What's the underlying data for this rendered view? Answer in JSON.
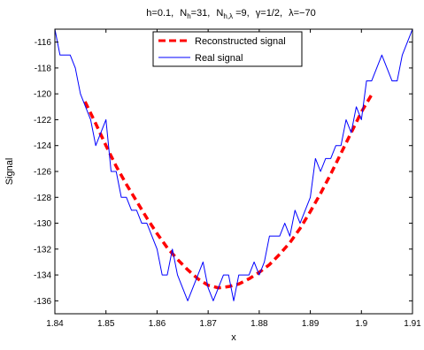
{
  "chart_data": {
    "type": "line",
    "title_parts": {
      "h": "h=0.1,",
      "nh_prefix": "N",
      "nh_sub": "h",
      "nh_suffix": "=31,",
      "nhl_prefix": "N",
      "nhl_sub": "h,λ",
      "nhl_suffix": " =9,",
      "gamma": "γ=1/2,",
      "lambda": "λ=−70"
    },
    "xlabel": "x",
    "ylabel": "Signal",
    "xlim": [
      1.84,
      1.91
    ],
    "ylim": [
      -137,
      -115
    ],
    "xticks": [
      1.84,
      1.85,
      1.86,
      1.87,
      1.88,
      1.89,
      1.9,
      1.91
    ],
    "xtick_labels": [
      "1.84",
      "1.85",
      "1.86",
      "1.87",
      "1.88",
      "1.89",
      "1.9",
      "1.91"
    ],
    "yticks": [
      -136,
      -134,
      -132,
      -130,
      -128,
      -126,
      -124,
      -122,
      -120,
      -118,
      -116
    ],
    "ytick_labels": [
      "-136",
      "-134",
      "-132",
      "-130",
      "-128",
      "-126",
      "-124",
      "-122",
      "-120",
      "-118",
      "-116"
    ],
    "grid": false,
    "legend_position": "top-center",
    "series": [
      {
        "name": "Reconstructed signal",
        "color": "#ff0000",
        "style": "dashed",
        "x": [
          1.8459,
          1.848,
          1.85,
          1.852,
          1.854,
          1.856,
          1.858,
          1.86,
          1.862,
          1.864,
          1.866,
          1.868,
          1.87,
          1.872,
          1.874,
          1.876,
          1.878,
          1.88,
          1.882,
          1.884,
          1.886,
          1.888,
          1.89,
          1.892,
          1.894,
          1.896,
          1.898,
          1.9,
          1.9021
        ],
        "y": [
          -120.6,
          -122.3,
          -124.0,
          -125.6,
          -127.0,
          -128.3,
          -129.6,
          -130.8,
          -131.9,
          -132.8,
          -133.6,
          -134.3,
          -134.8,
          -135.0,
          -134.9,
          -134.7,
          -134.3,
          -133.8,
          -133.2,
          -132.4,
          -131.5,
          -130.4,
          -129.1,
          -127.7,
          -126.2,
          -124.6,
          -123.0,
          -121.4,
          -120.0
        ]
      },
      {
        "name": "Real signal",
        "color": "#0000ff",
        "style": "solid",
        "x": [
          1.84,
          1.841,
          1.842,
          1.843,
          1.844,
          1.845,
          1.846,
          1.847,
          1.848,
          1.849,
          1.85,
          1.851,
          1.852,
          1.853,
          1.854,
          1.855,
          1.856,
          1.857,
          1.858,
          1.859,
          1.86,
          1.861,
          1.862,
          1.863,
          1.864,
          1.865,
          1.866,
          1.867,
          1.868,
          1.869,
          1.87,
          1.871,
          1.872,
          1.873,
          1.874,
          1.875,
          1.876,
          1.877,
          1.878,
          1.879,
          1.88,
          1.881,
          1.882,
          1.883,
          1.884,
          1.885,
          1.886,
          1.887,
          1.888,
          1.889,
          1.89,
          1.891,
          1.892,
          1.893,
          1.894,
          1.895,
          1.896,
          1.897,
          1.898,
          1.899,
          1.9,
          1.901,
          1.902,
          1.903,
          1.904,
          1.905,
          1.906,
          1.907,
          1.908,
          1.909,
          1.91
        ],
        "y": [
          -115.0,
          -117.0,
          -117.0,
          -117.0,
          -118.0,
          -120.0,
          -121.0,
          -122.0,
          -124.0,
          -123.0,
          -122.0,
          -126.0,
          -126.0,
          -128.0,
          -128.0,
          -129.0,
          -129.0,
          -130.0,
          -130.0,
          -131.0,
          -132.0,
          -134.0,
          -134.0,
          -132.0,
          -134.0,
          -135.0,
          -136.0,
          -135.0,
          -134.0,
          -133.0,
          -135.0,
          -136.0,
          -135.0,
          -134.0,
          -134.0,
          -136.0,
          -134.0,
          -134.0,
          -134.0,
          -133.0,
          -134.0,
          -133.0,
          -131.0,
          -131.0,
          -131.0,
          -130.0,
          -131.0,
          -129.0,
          -130.0,
          -129.0,
          -128.0,
          -125.0,
          -126.0,
          -125.0,
          -125.0,
          -124.0,
          -124.0,
          -122.0,
          -123.0,
          -121.0,
          -122.0,
          -119.0,
          -119.0,
          -118.0,
          -117.0,
          -118.0,
          -119.0,
          -119.0,
          -117.0,
          -116.0,
          -115.0
        ]
      }
    ]
  }
}
